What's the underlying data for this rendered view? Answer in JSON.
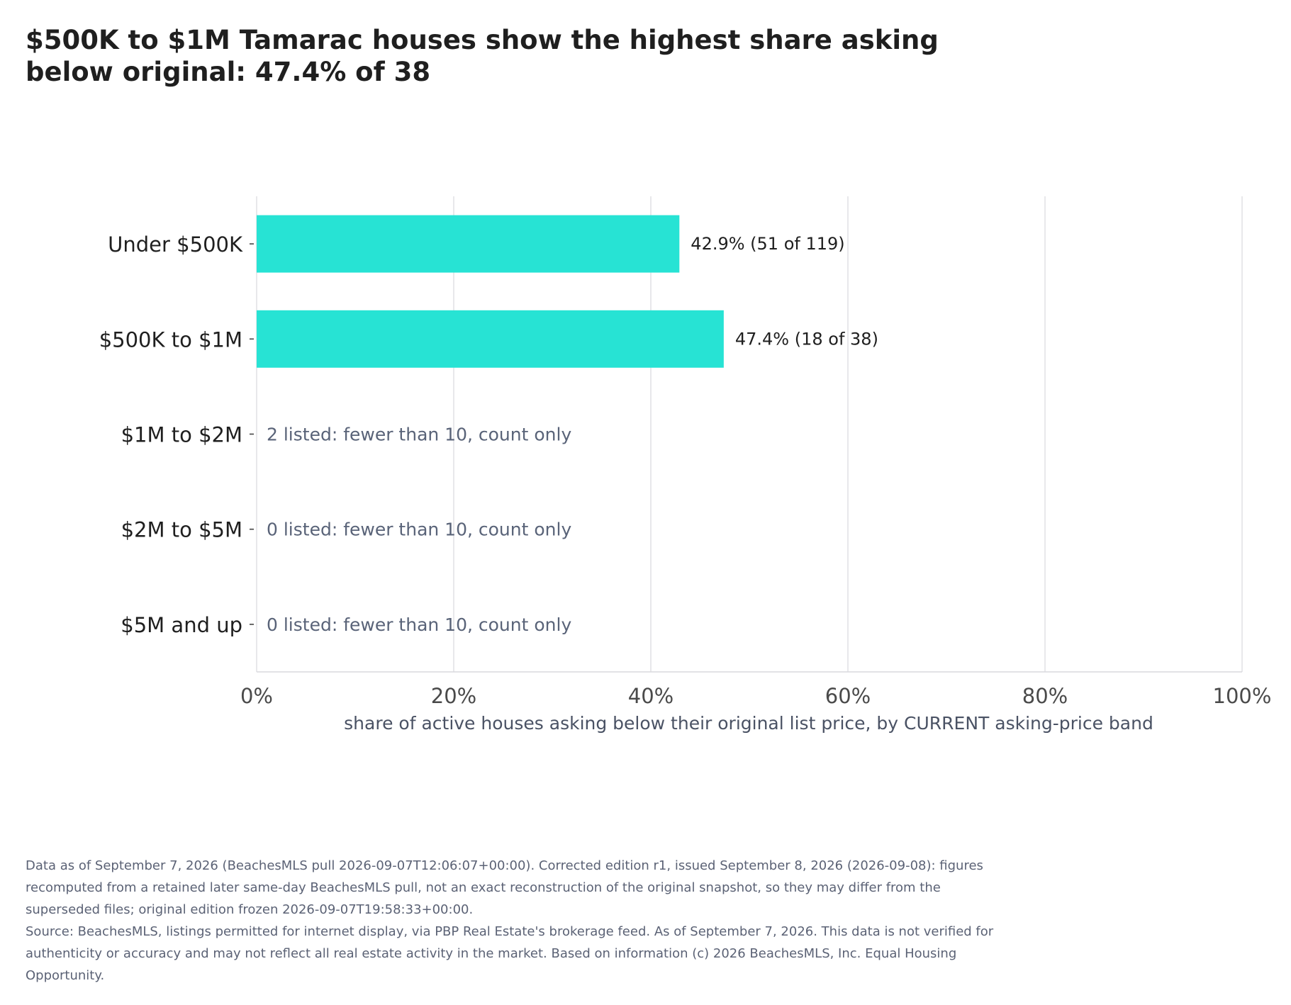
{
  "title": "$500K to $1M Tamarac houses show the highest share asking below original: 47.4% of 38",
  "chart_data": {
    "type": "bar",
    "orientation": "horizontal",
    "categories": [
      "Under $500K",
      "$500K to $1M",
      "$1M to $2M",
      "$2M to $5M",
      "$5M and up"
    ],
    "values": [
      42.9,
      47.4,
      null,
      null,
      null
    ],
    "counts": [
      {
        "below": 51,
        "total": 119
      },
      {
        "below": 18,
        "total": 38
      },
      {
        "below": null,
        "total": 2
      },
      {
        "below": null,
        "total": 0
      },
      {
        "below": null,
        "total": 0
      }
    ],
    "data_labels": [
      "42.9%  (51 of 119)",
      "47.4%  (18 of 38)",
      "2 listed: fewer than 10, count only",
      "0 listed: fewer than 10, count only",
      "0 listed: fewer than 10, count only"
    ],
    "xlim": [
      0,
      100
    ],
    "xticks": [
      0,
      20,
      40,
      60,
      80,
      100
    ],
    "xtick_labels": [
      "0%",
      "20%",
      "40%",
      "60%",
      "80%",
      "100%"
    ],
    "xlabel": "share of active houses asking below their original list price, by CURRENT asking-price band",
    "ylabel": "",
    "grid": "vertical",
    "colors": {
      "bar": "#27e3d4",
      "grid": "#e3e3e6",
      "note": "#596378",
      "axis": "#d9d9dd"
    }
  },
  "footer": {
    "note": "Data as of September 7, 2026 (BeachesMLS pull 2026-09-07T12:06:07+00:00). Corrected edition r1, issued September 8, 2026 (2026-09-08): figures recomputed from a retained later same-day BeachesMLS pull, not an exact reconstruction of the original snapshot, so they may differ from the superseded files; original edition frozen 2026-09-07T19:58:33+00:00.",
    "source": "Source: BeachesMLS, listings permitted for internet display, via PBP Real Estate's brokerage feed. As of September 7, 2026. This data is not verified for authenticity or accuracy and may not reflect all real estate activity in the market. Based on information (c) 2026 BeachesMLS, Inc. Equal Housing Opportunity."
  }
}
